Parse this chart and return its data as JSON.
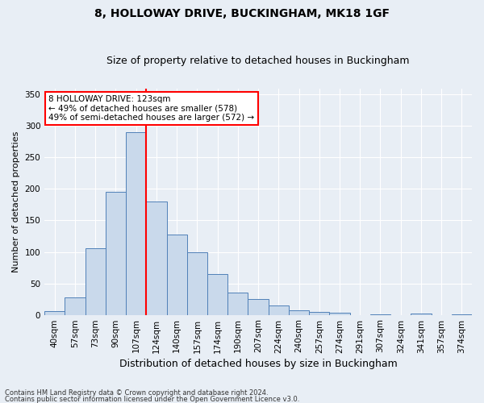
{
  "title": "8, HOLLOWAY DRIVE, BUCKINGHAM, MK18 1GF",
  "subtitle": "Size of property relative to detached houses in Buckingham",
  "xlabel": "Distribution of detached houses by size in Buckingham",
  "ylabel": "Number of detached properties",
  "footer_line1": "Contains HM Land Registry data © Crown copyright and database right 2024.",
  "footer_line2": "Contains public sector information licensed under the Open Government Licence v3.0.",
  "categories": [
    "40sqm",
    "57sqm",
    "73sqm",
    "90sqm",
    "107sqm",
    "124sqm",
    "140sqm",
    "157sqm",
    "174sqm",
    "190sqm",
    "207sqm",
    "224sqm",
    "240sqm",
    "257sqm",
    "274sqm",
    "291sqm",
    "307sqm",
    "324sqm",
    "341sqm",
    "357sqm",
    "374sqm"
  ],
  "bar_heights": [
    6,
    28,
    106,
    195,
    290,
    180,
    127,
    99,
    65,
    35,
    25,
    15,
    7,
    4,
    3,
    0,
    1,
    0,
    2,
    0,
    1
  ],
  "bar_color": "#c9d9eb",
  "bar_edge_color": "#5080b8",
  "red_line_index": 4.5,
  "annotation_text": "8 HOLLOWAY DRIVE: 123sqm\n← 49% of detached houses are smaller (578)\n49% of semi-detached houses are larger (572) →",
  "ylim": [
    0,
    360
  ],
  "yticks": [
    0,
    50,
    100,
    150,
    200,
    250,
    300,
    350
  ],
  "background_color": "#e8eef5",
  "grid_color": "#ffffff",
  "title_fontsize": 10,
  "subtitle_fontsize": 9,
  "tick_fontsize": 7.5,
  "ylabel_fontsize": 8,
  "xlabel_fontsize": 9
}
